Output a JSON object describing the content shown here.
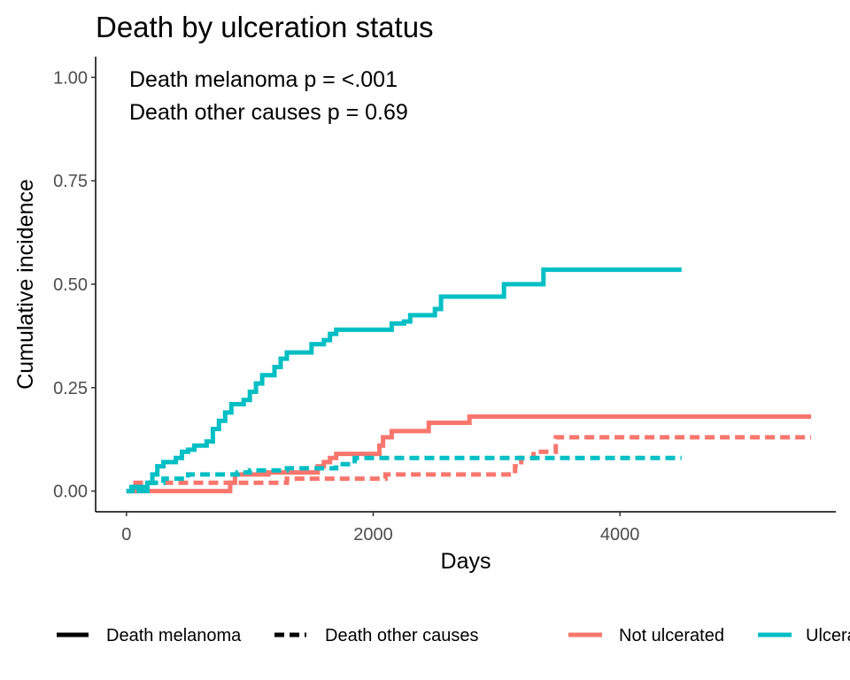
{
  "chart_data": {
    "type": "line",
    "step": true,
    "title": "Death by ulceration status",
    "xlabel": "Days",
    "ylabel": "Cumulative incidence",
    "xlim": [
      -250,
      5750
    ],
    "ylim": [
      -0.05,
      1.05
    ],
    "x_ticks": [
      0,
      2000,
      4000
    ],
    "x_tick_labels": [
      "0",
      "2000",
      "4000"
    ],
    "y_ticks": [
      0,
      0.25,
      0.5,
      0.75,
      1.0
    ],
    "y_tick_labels": [
      "0.00",
      "0.25",
      "0.50",
      "0.75",
      "1.00"
    ],
    "grid": false,
    "annotations": [
      "Death melanoma p = <.001",
      "Death other causes p = 0.69"
    ],
    "legend": {
      "position": "bottom",
      "linetype_items": [
        {
          "label": "Death melanoma",
          "dash": "solid"
        },
        {
          "label": "Death other causes",
          "dash": "dashed"
        }
      ],
      "color_items": [
        {
          "label": "Not ulcerated",
          "color": "#F8766D"
        },
        {
          "label": "Ulcerated",
          "color": "#00BFC4"
        }
      ]
    },
    "series": [
      {
        "group": "Not ulcerated",
        "cause": "Death melanoma",
        "color": "#F8766D",
        "dash": "solid",
        "points": [
          [
            0,
            0
          ],
          [
            800,
            0
          ],
          [
            840,
            0.02
          ],
          [
            880,
            0.04
          ],
          [
            1050,
            0.04
          ],
          [
            1150,
            0.045
          ],
          [
            1450,
            0.045
          ],
          [
            1550,
            0.06
          ],
          [
            1600,
            0.07
          ],
          [
            1650,
            0.08
          ],
          [
            1700,
            0.09
          ],
          [
            1900,
            0.09
          ],
          [
            2050,
            0.11
          ],
          [
            2080,
            0.13
          ],
          [
            2150,
            0.145
          ],
          [
            2400,
            0.145
          ],
          [
            2450,
            0.165
          ],
          [
            2750,
            0.165
          ],
          [
            2780,
            0.18
          ],
          [
            5550,
            0.18
          ]
        ]
      },
      {
        "group": "Not ulcerated",
        "cause": "Death other causes",
        "color": "#F8766D",
        "dash": "dashed",
        "points": [
          [
            0,
            0
          ],
          [
            50,
            0.02
          ],
          [
            800,
            0.02
          ],
          [
            1200,
            0.02
          ],
          [
            1300,
            0.03
          ],
          [
            1500,
            0.03
          ],
          [
            1560,
            0.03
          ],
          [
            2050,
            0.03
          ],
          [
            2100,
            0.04
          ],
          [
            3100,
            0.04
          ],
          [
            3150,
            0.06
          ],
          [
            3200,
            0.08
          ],
          [
            3300,
            0.095
          ],
          [
            3450,
            0.095
          ],
          [
            3480,
            0.13
          ],
          [
            5550,
            0.13
          ]
        ]
      },
      {
        "group": "Ulcerated",
        "cause": "Death melanoma",
        "color": "#00BFC4",
        "dash": "solid",
        "points": [
          [
            0,
            0
          ],
          [
            50,
            0.01
          ],
          [
            100,
            0
          ],
          [
            170,
            0.02
          ],
          [
            210,
            0.04
          ],
          [
            250,
            0.06
          ],
          [
            300,
            0.07
          ],
          [
            350,
            0.07
          ],
          [
            400,
            0.08
          ],
          [
            450,
            0.095
          ],
          [
            500,
            0.1
          ],
          [
            550,
            0.11
          ],
          [
            650,
            0.12
          ],
          [
            700,
            0.15
          ],
          [
            750,
            0.17
          ],
          [
            800,
            0.19
          ],
          [
            850,
            0.21
          ],
          [
            950,
            0.22
          ],
          [
            1000,
            0.24
          ],
          [
            1050,
            0.26
          ],
          [
            1100,
            0.28
          ],
          [
            1150,
            0.28
          ],
          [
            1200,
            0.3
          ],
          [
            1250,
            0.32
          ],
          [
            1300,
            0.335
          ],
          [
            1450,
            0.335
          ],
          [
            1500,
            0.355
          ],
          [
            1600,
            0.365
          ],
          [
            1650,
            0.38
          ],
          [
            1700,
            0.39
          ],
          [
            2100,
            0.39
          ],
          [
            2150,
            0.405
          ],
          [
            2250,
            0.41
          ],
          [
            2300,
            0.425
          ],
          [
            2450,
            0.425
          ],
          [
            2500,
            0.44
          ],
          [
            2550,
            0.47
          ],
          [
            3050,
            0.47
          ],
          [
            3060,
            0.5
          ],
          [
            3350,
            0.5
          ],
          [
            3380,
            0.535
          ],
          [
            4500,
            0.535
          ]
        ]
      },
      {
        "group": "Ulcerated",
        "cause": "Death other causes",
        "color": "#00BFC4",
        "dash": "dashed",
        "points": [
          [
            0,
            0
          ],
          [
            40,
            0.01
          ],
          [
            150,
            0.02
          ],
          [
            300,
            0.03
          ],
          [
            500,
            0.04
          ],
          [
            900,
            0.045
          ],
          [
            1000,
            0.05
          ],
          [
            1200,
            0.05
          ],
          [
            1300,
            0.055
          ],
          [
            1650,
            0.055
          ],
          [
            1700,
            0.065
          ],
          [
            1850,
            0.08
          ],
          [
            4500,
            0.08
          ]
        ]
      }
    ]
  }
}
